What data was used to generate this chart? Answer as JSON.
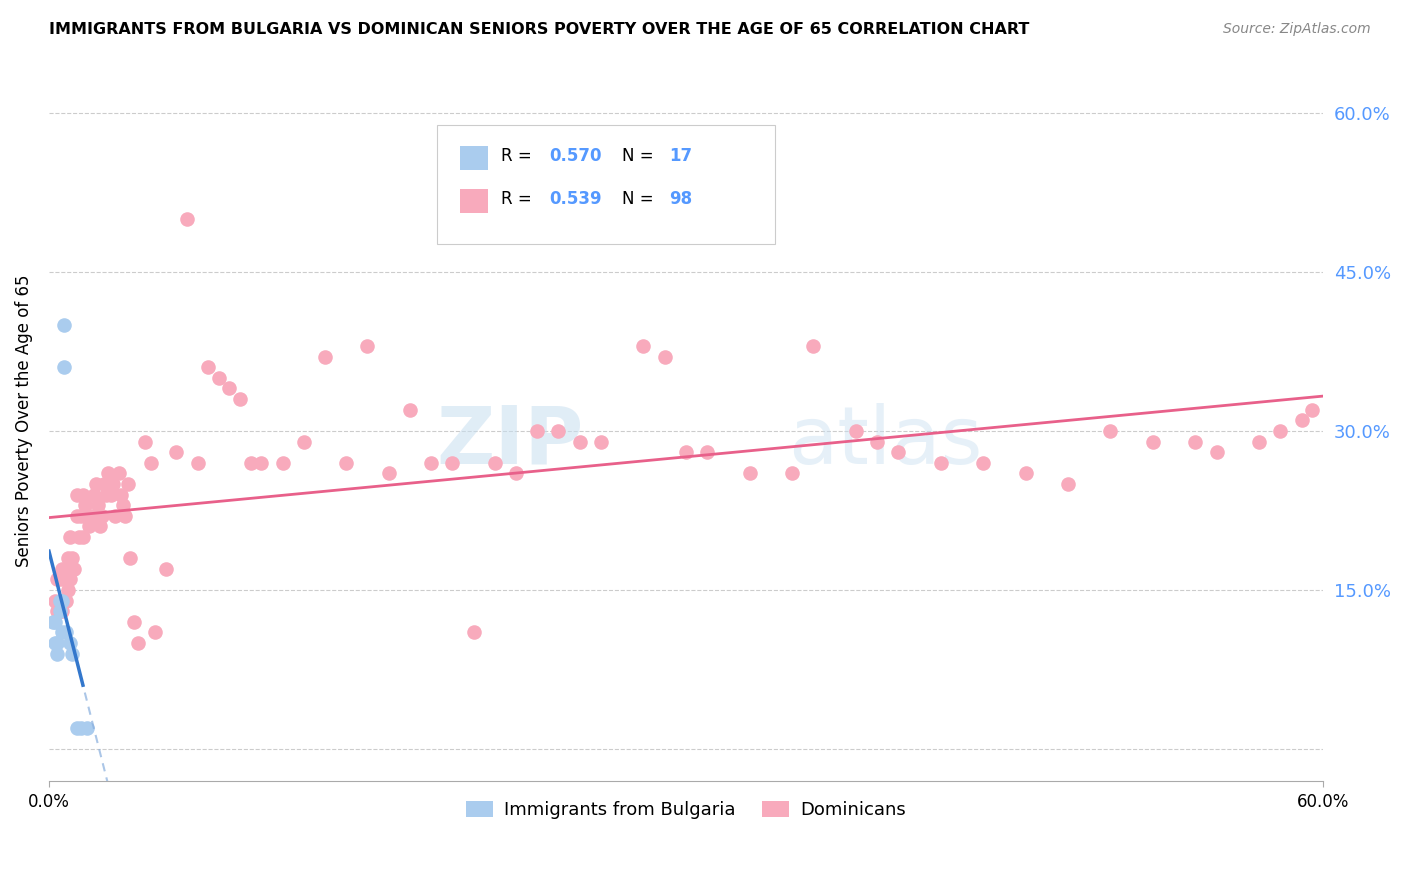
{
  "title": "IMMIGRANTS FROM BULGARIA VS DOMINICAN SENIORS POVERTY OVER THE AGE OF 65 CORRELATION CHART",
  "source": "Source: ZipAtlas.com",
  "ylabel": "Seniors Poverty Over the Age of 65",
  "xlim": [
    0.0,
    0.6
  ],
  "ylim": [
    -0.03,
    0.65
  ],
  "yticks": [
    0.0,
    0.15,
    0.3,
    0.45,
    0.6
  ],
  "ytick_labels": [
    "",
    "15.0%",
    "30.0%",
    "45.0%",
    "60.0%"
  ],
  "legend_r_bulgaria": "0.570",
  "legend_n_bulgaria": "17",
  "legend_r_dominican": "0.539",
  "legend_n_dominican": "98",
  "bulgaria_color": "#aaccee",
  "dominican_color": "#f8aabc",
  "trend_bulgaria_solid_color": "#3377cc",
  "trend_bulgaria_dash_color": "#88aedd",
  "trend_dominican_color": "#e8608a",
  "right_axis_color": "#5599ff",
  "bulgaria_points_x": [
    0.002,
    0.003,
    0.003,
    0.004,
    0.004,
    0.005,
    0.005,
    0.006,
    0.006,
    0.007,
    0.007,
    0.008,
    0.01,
    0.011,
    0.013,
    0.015,
    0.018
  ],
  "bulgaria_points_y": [
    0.12,
    0.12,
    0.1,
    0.1,
    0.09,
    0.13,
    0.14,
    0.11,
    0.14,
    0.4,
    0.36,
    0.11,
    0.1,
    0.09,
    0.02,
    0.02,
    0.02
  ],
  "dominican_points_x": [
    0.003,
    0.004,
    0.004,
    0.005,
    0.005,
    0.006,
    0.006,
    0.007,
    0.007,
    0.008,
    0.008,
    0.009,
    0.009,
    0.01,
    0.01,
    0.011,
    0.012,
    0.013,
    0.013,
    0.014,
    0.015,
    0.016,
    0.016,
    0.017,
    0.018,
    0.019,
    0.02,
    0.021,
    0.022,
    0.022,
    0.023,
    0.024,
    0.025,
    0.026,
    0.027,
    0.028,
    0.029,
    0.03,
    0.031,
    0.033,
    0.034,
    0.035,
    0.036,
    0.037,
    0.038,
    0.04,
    0.042,
    0.045,
    0.048,
    0.05,
    0.055,
    0.06,
    0.065,
    0.07,
    0.075,
    0.08,
    0.085,
    0.09,
    0.095,
    0.1,
    0.11,
    0.12,
    0.13,
    0.14,
    0.15,
    0.16,
    0.17,
    0.18,
    0.19,
    0.2,
    0.21,
    0.22,
    0.23,
    0.24,
    0.25,
    0.26,
    0.28,
    0.29,
    0.3,
    0.31,
    0.33,
    0.35,
    0.36,
    0.38,
    0.39,
    0.4,
    0.42,
    0.44,
    0.46,
    0.48,
    0.5,
    0.52,
    0.54,
    0.55,
    0.57,
    0.58,
    0.59,
    0.595
  ],
  "dominican_points_y": [
    0.14,
    0.13,
    0.16,
    0.13,
    0.16,
    0.13,
    0.17,
    0.14,
    0.16,
    0.14,
    0.17,
    0.15,
    0.18,
    0.16,
    0.2,
    0.18,
    0.17,
    0.22,
    0.24,
    0.2,
    0.22,
    0.24,
    0.2,
    0.23,
    0.22,
    0.21,
    0.22,
    0.24,
    0.22,
    0.25,
    0.23,
    0.21,
    0.22,
    0.25,
    0.24,
    0.26,
    0.24,
    0.25,
    0.22,
    0.26,
    0.24,
    0.23,
    0.22,
    0.25,
    0.18,
    0.12,
    0.1,
    0.29,
    0.27,
    0.11,
    0.17,
    0.28,
    0.5,
    0.27,
    0.36,
    0.35,
    0.34,
    0.33,
    0.27,
    0.27,
    0.27,
    0.29,
    0.37,
    0.27,
    0.38,
    0.26,
    0.32,
    0.27,
    0.27,
    0.11,
    0.27,
    0.26,
    0.3,
    0.3,
    0.29,
    0.29,
    0.38,
    0.37,
    0.28,
    0.28,
    0.26,
    0.26,
    0.38,
    0.3,
    0.29,
    0.28,
    0.27,
    0.27,
    0.26,
    0.25,
    0.3,
    0.29,
    0.29,
    0.28,
    0.29,
    0.3,
    0.31,
    0.32
  ]
}
